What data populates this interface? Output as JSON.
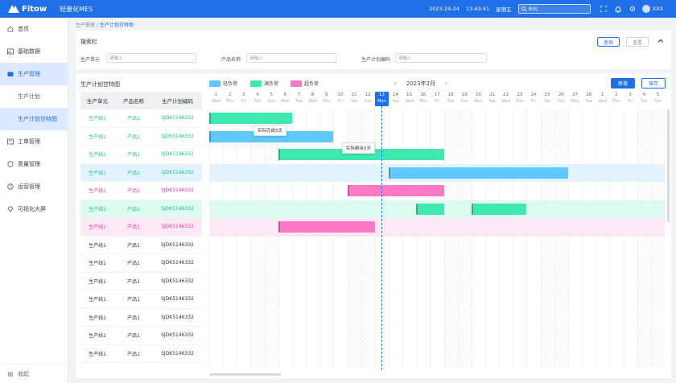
{
  "app": {
    "logo": "Fitow",
    "title": "轻量化MES",
    "date": "2023-24-24",
    "time": "13:43:41",
    "weekday": "星期五",
    "search_placeholder": "Bdc",
    "user": "XXX"
  },
  "sidebar": {
    "items": [
      {
        "label": "首页",
        "icon": "home-icon"
      },
      {
        "label": "基础数据",
        "icon": "image-icon"
      },
      {
        "label": "生产管理",
        "icon": "folder-icon",
        "active": true
      },
      {
        "label": "工单管理",
        "icon": "ticket-icon"
      },
      {
        "label": "质量管理",
        "icon": "shield-icon"
      },
      {
        "label": "运营管理",
        "icon": "clock-icon"
      },
      {
        "label": "可视化大屏",
        "icon": "gem-icon"
      }
    ],
    "subitems": [
      {
        "label": "生产计划"
      },
      {
        "label": "生产计划甘特图",
        "active": true
      }
    ],
    "collapse": "收起"
  },
  "breadcrumb": {
    "parent": "生产管理",
    "sep": " / ",
    "current": "生产计划甘特图"
  },
  "search_panel": {
    "title": "搜索栏",
    "query_btn": "查询",
    "reset_btn": "重置",
    "fields": [
      {
        "label": "生产单元",
        "placeholder": "请输入"
      },
      {
        "label": "产品名称",
        "placeholder": "请输入"
      },
      {
        "label": "生产计划编码",
        "placeholder": "请输入"
      }
    ]
  },
  "gantt": {
    "title": "生产计划甘特图",
    "legend": [
      {
        "label": "轻负荷",
        "color": "#5ec8fb"
      },
      {
        "label": "满负荷",
        "color": "#3ee8b0"
      },
      {
        "label": "超负荷",
        "color": "#ff7ac6"
      }
    ],
    "month": "2023年2月",
    "prev": "‹",
    "next": "›",
    "add_btn": "新增",
    "save_btn": "保存",
    "columns": [
      "生产单元",
      "产品名称",
      "生产计划编码"
    ],
    "rows": [
      {
        "unit": "生产线1",
        "product": "产品1",
        "code": "SJDK5146332",
        "color": "#22c08a"
      },
      {
        "unit": "生产线1",
        "product": "产品1",
        "code": "SJDK5146332",
        "color": "#22c08a"
      },
      {
        "unit": "生产线1",
        "product": "产品1",
        "code": "SJDK5146332",
        "color": "#22c08a"
      },
      {
        "unit": "生产线1",
        "product": "产品1",
        "code": "SJDK5146332",
        "color": "#22c08a"
      },
      {
        "unit": "生产线1",
        "product": "产品1",
        "code": "SJDK5146332",
        "color": "#e0409c"
      },
      {
        "unit": "生产线1",
        "product": "产品1",
        "code": "SJDK5146332",
        "color": "#22c08a"
      },
      {
        "unit": "生产线1",
        "product": "产品1",
        "code": "SJDK5146332",
        "color": "#e0409c"
      },
      {
        "unit": "生产线1",
        "product": "产品1",
        "code": "SJDK5146332",
        "color": "#333333"
      },
      {
        "unit": "生产线1",
        "product": "产品1",
        "code": "SJDK5146332",
        "color": "#333333"
      },
      {
        "unit": "生产线1",
        "product": "产品1",
        "code": "SJDK5146332",
        "color": "#333333"
      },
      {
        "unit": "生产线1",
        "product": "产品1",
        "code": "SJDK5146332",
        "color": "#333333"
      },
      {
        "unit": "生产线1",
        "product": "产品1",
        "code": "SJDK5146332",
        "color": "#333333"
      },
      {
        "unit": "生产线1",
        "product": "产品1",
        "code": "SJDK5146332",
        "color": "#333333"
      },
      {
        "unit": "生产线1",
        "product": "产品1",
        "code": "SJDK5146332",
        "color": "#333333"
      }
    ],
    "days": [
      {
        "d": "1",
        "w": "Wed"
      },
      {
        "d": "2",
        "w": "Thu"
      },
      {
        "d": "3",
        "w": "Fri"
      },
      {
        "d": "4",
        "w": "Sat"
      },
      {
        "d": "5",
        "w": "Sun"
      },
      {
        "d": "6",
        "w": "Mon"
      },
      {
        "d": "7",
        "w": "Tue"
      },
      {
        "d": "8",
        "w": "Wed"
      },
      {
        "d": "9",
        "w": "Thu"
      },
      {
        "d": "10",
        "w": "Fri"
      },
      {
        "d": "11",
        "w": "Sat"
      },
      {
        "d": "12",
        "w": "Sun"
      },
      {
        "d": "13",
        "w": "Mon",
        "today": true
      },
      {
        "d": "14",
        "w": "Tue"
      },
      {
        "d": "15",
        "w": "Wed"
      },
      {
        "d": "16",
        "w": "Thu"
      },
      {
        "d": "17",
        "w": "Fri"
      },
      {
        "d": "18",
        "w": "Sat"
      },
      {
        "d": "19",
        "w": "Sun"
      },
      {
        "d": "20",
        "w": "Mon"
      },
      {
        "d": "21",
        "w": "Tue"
      },
      {
        "d": "22",
        "w": "Wed"
      },
      {
        "d": "23",
        "w": "Thu"
      },
      {
        "d": "24",
        "w": "Fri"
      },
      {
        "d": "25",
        "w": "Sat"
      },
      {
        "d": "26",
        "w": "Sun"
      },
      {
        "d": "27",
        "w": "Mon"
      },
      {
        "d": "28",
        "w": "Tue"
      },
      {
        "d": "1",
        "w": "Wed"
      },
      {
        "d": "2",
        "w": "Thu"
      },
      {
        "d": "3",
        "w": "Fri"
      },
      {
        "d": "4",
        "w": "Sat"
      },
      {
        "d": "5",
        "w": "Sun"
      }
    ],
    "tasks": [
      {
        "row": 0,
        "start": 1,
        "end": 6,
        "color": "#3ee8b0"
      },
      {
        "row": 1,
        "start": 1,
        "end": 9,
        "color": "#5ec8fb",
        "light_until": 4
      },
      {
        "row": 2,
        "start": 6,
        "end": 17,
        "color": "#3ee8b0"
      },
      {
        "row": 3,
        "start": 14,
        "end": 26,
        "color": "#5ec8fb"
      },
      {
        "row": 4,
        "start": 11,
        "end": 17,
        "color": "#ff7ac6"
      },
      {
        "row": 5,
        "start": 16,
        "end": 17,
        "color": "#3ee8b0"
      },
      {
        "row": 5,
        "start": 20,
        "end": 23,
        "color": "#3ee8b0"
      },
      {
        "row": 6,
        "start": 6,
        "end": 12,
        "color": "#ff7ac6"
      }
    ],
    "highlight_rows": [
      {
        "row": 3,
        "color": "#e3f2ff"
      },
      {
        "row": 5,
        "color": "#dcfaf0"
      },
      {
        "row": 6,
        "color": "#fde9f5"
      }
    ],
    "tooltips": [
      {
        "text": "实际完成5天"
      },
      {
        "text": "实际剩余5天"
      }
    ]
  }
}
